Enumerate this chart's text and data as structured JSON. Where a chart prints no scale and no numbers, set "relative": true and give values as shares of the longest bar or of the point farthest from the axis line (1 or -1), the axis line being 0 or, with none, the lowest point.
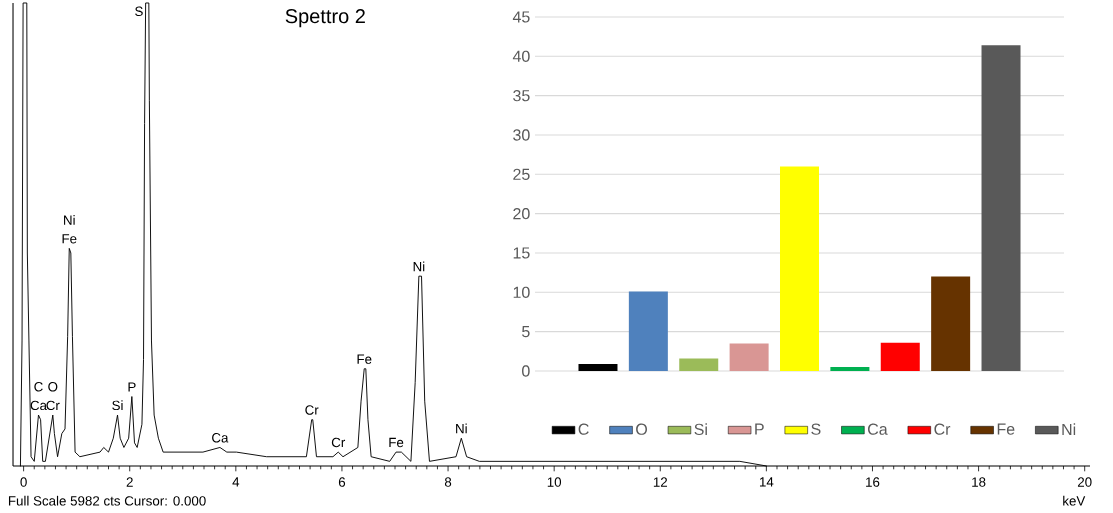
{
  "chart_data": [
    {
      "type": "line",
      "title": "Spettro 2",
      "xlabel": "keV",
      "relative": true,
      "color": "#000000",
      "xlim": [
        -0.2,
        20.1
      ],
      "xticks": [
        0,
        2,
        4,
        6,
        8,
        10,
        12,
        14,
        16,
        18,
        20
      ],
      "x": [
        -0.06,
        -0.03,
        -0.01,
        0.06,
        0.07,
        0.1,
        0.14,
        0.2,
        0.28,
        0.32,
        0.36,
        0.41,
        0.55,
        0.58,
        0.64,
        0.72,
        0.78,
        0.83,
        0.86,
        0.89,
        0.92,
        0.97,
        1.06,
        1.44,
        1.51,
        1.6,
        1.69,
        1.77,
        1.82,
        1.89,
        1.98,
        2.04,
        2.09,
        2.14,
        2.23,
        2.26,
        2.28,
        2.3,
        2.36,
        2.37,
        2.41,
        2.46,
        2.54,
        2.63,
        2.83,
        3.32,
        3.38,
        3.7,
        3.83,
        4.01,
        4.58,
        5.21,
        5.33,
        5.43,
        5.45,
        5.52,
        5.83,
        5.93,
        6.02,
        6.3,
        6.36,
        6.42,
        6.45,
        6.49,
        6.55,
        6.9,
        7.02,
        7.12,
        7.3,
        7.38,
        7.45,
        7.5,
        7.56,
        7.65,
        8.15,
        8.25,
        8.35,
        8.59,
        9.5,
        10.5,
        11.5,
        12.5,
        13.5,
        14.0
      ],
      "values": [
        0,
        0.27,
        1,
        1,
        0.46,
        0.27,
        0.02,
        0.01,
        0.11,
        0.1,
        0.01,
        0.01,
        0.11,
        0.07,
        0.02,
        0.07,
        0.08,
        0.28,
        0.47,
        0.46,
        0.28,
        0.03,
        0.02,
        0.03,
        0.04,
        0.03,
        0.06,
        0.11,
        0.06,
        0.04,
        0.06,
        0.15,
        0.05,
        0.04,
        0.09,
        0.23,
        0.74,
        1,
        1,
        0.79,
        0.27,
        0.11,
        0.06,
        0.03,
        0.03,
        0.03,
        0.03,
        0.04,
        0.03,
        0.03,
        0.02,
        0.02,
        0.02,
        0.1,
        0.1,
        0.02,
        0.02,
        0.03,
        0.02,
        0.04,
        0.14,
        0.21,
        0.21,
        0.1,
        0.02,
        0.01,
        0.03,
        0.03,
        0.01,
        0.18,
        0.41,
        0.41,
        0.14,
        0.01,
        0.02,
        0.06,
        0.02,
        0.01,
        0.01,
        0.01,
        0.01,
        0.01,
        0.01,
        0
      ],
      "annotations": [
        {
          "text": "Ca",
          "x": 0.28,
          "y": 0.11
        },
        {
          "text": "C",
          "x": 0.28,
          "y": 0.11
        },
        {
          "text": "Cr",
          "x": 0.55,
          "y": 0.11
        },
        {
          "text": "O",
          "x": 0.55,
          "y": 0.11
        },
        {
          "text": "Fe",
          "x": 0.86,
          "y": 0.47
        },
        {
          "text": "Ni",
          "x": 0.86,
          "y": 0.47
        },
        {
          "text": "Si",
          "x": 1.77,
          "y": 0.11
        },
        {
          "text": "P",
          "x": 2.04,
          "y": 0.15
        },
        {
          "text": "S",
          "x": 2.3,
          "y": 1
        },
        {
          "text": "Ca",
          "x": 3.7,
          "y": 0.04
        },
        {
          "text": "Cr",
          "x": 5.43,
          "y": 0.1
        },
        {
          "text": "Cr",
          "x": 5.93,
          "y": 0.03
        },
        {
          "text": "Fe",
          "x": 6.42,
          "y": 0.21
        },
        {
          "text": "Fe",
          "x": 7.02,
          "y": 0.03
        },
        {
          "text": "Ni",
          "x": 7.45,
          "y": 0.41
        },
        {
          "text": "Ni",
          "x": 8.25,
          "y": 0.06
        },
        "Full Scale 5982 cts Cursor: 0.000"
      ]
    },
    {
      "type": "bar",
      "categories": [
        null
      ],
      "series": [
        {
          "name": "C",
          "color": "#000000",
          "values": [
            0.9
          ]
        },
        {
          "name": "O",
          "color": "#4f81bd",
          "values": [
            10.1
          ]
        },
        {
          "name": "Si",
          "color": "#9bbb59",
          "values": [
            1.6
          ]
        },
        {
          "name": "P",
          "color": "#d99694",
          "values": [
            3.5
          ]
        },
        {
          "name": "S",
          "color": "#ffff00",
          "values": [
            26.0
          ]
        },
        {
          "name": "Ca",
          "color": "#00b050",
          "values": [
            0.5
          ]
        },
        {
          "name": "Cr",
          "color": "#ff0000",
          "values": [
            3.6
          ]
        },
        {
          "name": "Fe",
          "color": "#663300",
          "values": [
            12.0
          ]
        },
        {
          "name": "Ni",
          "color": "#595959",
          "values": [
            41.4
          ]
        }
      ],
      "ylim": [
        0,
        45
      ],
      "yticks": [
        0,
        5,
        10,
        15,
        20,
        25,
        30,
        35,
        40,
        45
      ],
      "grid": "y",
      "legend": "bottom"
    }
  ]
}
